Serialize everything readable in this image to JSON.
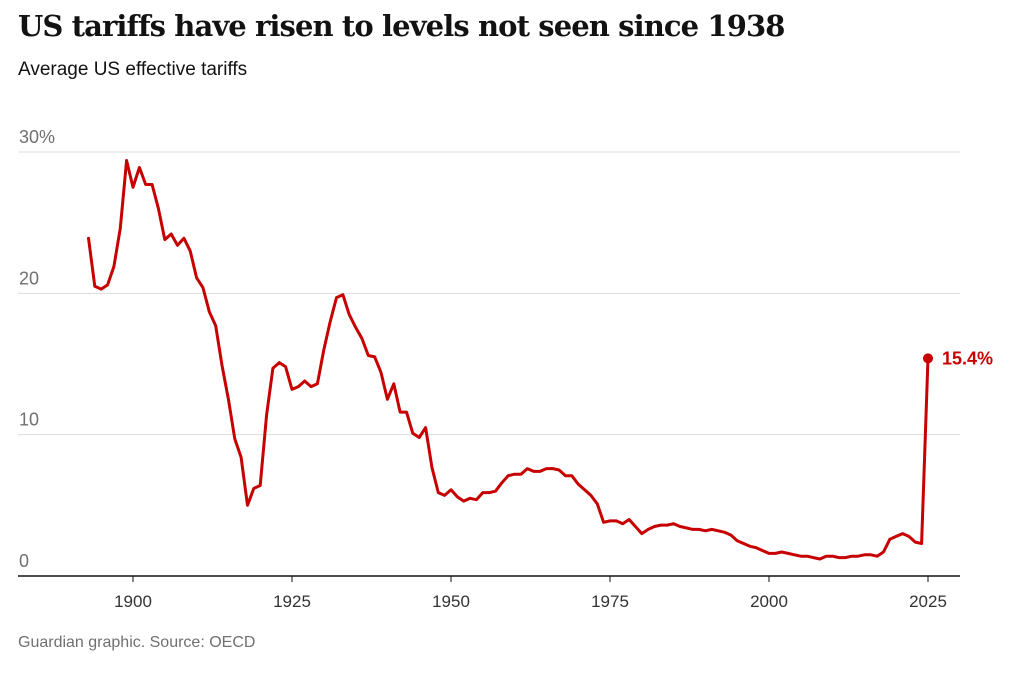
{
  "title": "US tariffs have risen to levels not seen since 1938",
  "subtitle": "Average US effective tariffs",
  "source": "Guardian graphic. Source: OECD",
  "chart_data": {
    "type": "line",
    "title": "US tariffs have risen to levels not seen since 1938",
    "subtitle": "Average US effective tariffs",
    "xlabel": "",
    "ylabel": "",
    "xlim": [
      1880,
      2030
    ],
    "ylim": [
      0,
      30
    ],
    "grid": true,
    "legend": "none",
    "y_ticks": [
      {
        "value": 0,
        "label": "0"
      },
      {
        "value": 10,
        "label": "10"
      },
      {
        "value": 20,
        "label": "20"
      },
      {
        "value": 30,
        "label": "30%"
      }
    ],
    "x_ticks": [
      {
        "value": 1900,
        "label": "1900"
      },
      {
        "value": 1925,
        "label": "1925"
      },
      {
        "value": 1950,
        "label": "1950"
      },
      {
        "value": 1975,
        "label": "1975"
      },
      {
        "value": 2000,
        "label": "2000"
      },
      {
        "value": 2025,
        "label": "2025"
      }
    ],
    "series": [
      {
        "color": "#c70000",
        "points": [
          [
            1893,
            23.9
          ],
          [
            1894,
            20.5
          ],
          [
            1895,
            20.3
          ],
          [
            1896,
            20.6
          ],
          [
            1897,
            21.9
          ],
          [
            1898,
            24.6
          ],
          [
            1899,
            29.4
          ],
          [
            1900,
            27.5
          ],
          [
            1901,
            28.9
          ],
          [
            1902,
            27.7
          ],
          [
            1903,
            27.7
          ],
          [
            1904,
            26.0
          ],
          [
            1905,
            23.8
          ],
          [
            1906,
            24.2
          ],
          [
            1907,
            23.4
          ],
          [
            1908,
            23.9
          ],
          [
            1909,
            23.0
          ],
          [
            1910,
            21.1
          ],
          [
            1911,
            20.4
          ],
          [
            1912,
            18.7
          ],
          [
            1913,
            17.7
          ],
          [
            1914,
            14.9
          ],
          [
            1915,
            12.5
          ],
          [
            1916,
            9.7
          ],
          [
            1917,
            8.4
          ],
          [
            1918,
            5.0
          ],
          [
            1919,
            6.2
          ],
          [
            1920,
            6.4
          ],
          [
            1921,
            11.4
          ],
          [
            1922,
            14.7
          ],
          [
            1923,
            15.1
          ],
          [
            1924,
            14.8
          ],
          [
            1925,
            13.2
          ],
          [
            1926,
            13.4
          ],
          [
            1927,
            13.8
          ],
          [
            1928,
            13.4
          ],
          [
            1929,
            13.6
          ],
          [
            1930,
            16.0
          ],
          [
            1931,
            18.0
          ],
          [
            1932,
            19.7
          ],
          [
            1933,
            19.9
          ],
          [
            1934,
            18.5
          ],
          [
            1935,
            17.6
          ],
          [
            1936,
            16.8
          ],
          [
            1937,
            15.6
          ],
          [
            1938,
            15.5
          ],
          [
            1939,
            14.4
          ],
          [
            1940,
            12.5
          ],
          [
            1941,
            13.6
          ],
          [
            1942,
            11.6
          ],
          [
            1943,
            11.6
          ],
          [
            1944,
            10.1
          ],
          [
            1945,
            9.8
          ],
          [
            1946,
            10.5
          ],
          [
            1947,
            7.7
          ],
          [
            1948,
            5.9
          ],
          [
            1949,
            5.7
          ],
          [
            1950,
            6.1
          ],
          [
            1951,
            5.6
          ],
          [
            1952,
            5.3
          ],
          [
            1953,
            5.5
          ],
          [
            1954,
            5.4
          ],
          [
            1955,
            5.9
          ],
          [
            1956,
            5.9
          ],
          [
            1957,
            6.0
          ],
          [
            1958,
            6.6
          ],
          [
            1959,
            7.1
          ],
          [
            1960,
            7.2
          ],
          [
            1961,
            7.2
          ],
          [
            1962,
            7.6
          ],
          [
            1963,
            7.4
          ],
          [
            1964,
            7.4
          ],
          [
            1965,
            7.6
          ],
          [
            1966,
            7.6
          ],
          [
            1967,
            7.5
          ],
          [
            1968,
            7.1
          ],
          [
            1969,
            7.1
          ],
          [
            1970,
            6.5
          ],
          [
            1971,
            6.1
          ],
          [
            1972,
            5.7
          ],
          [
            1973,
            5.1
          ],
          [
            1974,
            3.8
          ],
          [
            1975,
            3.9
          ],
          [
            1976,
            3.9
          ],
          [
            1977,
            3.7
          ],
          [
            1978,
            4.0
          ],
          [
            1979,
            3.5
          ],
          [
            1980,
            3.0
          ],
          [
            1981,
            3.3
          ],
          [
            1982,
            3.5
          ],
          [
            1983,
            3.6
          ],
          [
            1984,
            3.6
          ],
          [
            1985,
            3.7
          ],
          [
            1986,
            3.5
          ],
          [
            1987,
            3.4
          ],
          [
            1988,
            3.3
          ],
          [
            1989,
            3.3
          ],
          [
            1990,
            3.2
          ],
          [
            1991,
            3.3
          ],
          [
            1992,
            3.2
          ],
          [
            1993,
            3.1
          ],
          [
            1994,
            2.9
          ],
          [
            1995,
            2.5
          ],
          [
            1996,
            2.3
          ],
          [
            1997,
            2.1
          ],
          [
            1998,
            2.0
          ],
          [
            1999,
            1.8
          ],
          [
            2000,
            1.6
          ],
          [
            2001,
            1.6
          ],
          [
            2002,
            1.7
          ],
          [
            2003,
            1.6
          ],
          [
            2004,
            1.5
          ],
          [
            2005,
            1.4
          ],
          [
            2006,
            1.4
          ],
          [
            2007,
            1.3
          ],
          [
            2008,
            1.2
          ],
          [
            2009,
            1.4
          ],
          [
            2010,
            1.4
          ],
          [
            2011,
            1.3
          ],
          [
            2012,
            1.3
          ],
          [
            2013,
            1.4
          ],
          [
            2014,
            1.4
          ],
          [
            2015,
            1.5
          ],
          [
            2016,
            1.5
          ],
          [
            2017,
            1.4
          ],
          [
            2018,
            1.7
          ],
          [
            2019,
            2.6
          ],
          [
            2020,
            2.8
          ],
          [
            2021,
            3.0
          ],
          [
            2022,
            2.8
          ],
          [
            2023,
            2.4
          ],
          [
            2024,
            2.3
          ],
          [
            2025,
            15.4
          ]
        ]
      }
    ],
    "annotations": [
      {
        "x": 2025,
        "y": 15.4,
        "text": "15.4%"
      }
    ]
  }
}
